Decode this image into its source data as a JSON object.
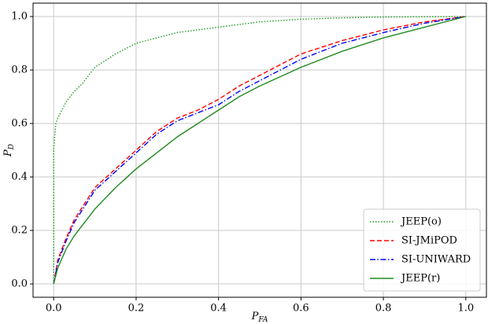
{
  "chart_data": {
    "type": "line",
    "xlabel": "P_FA",
    "ylabel": "P_D",
    "xlim": [
      -0.05,
      1.05
    ],
    "ylim": [
      -0.05,
      1.05
    ],
    "xticks": [
      {
        "value": 0,
        "label": "0.0"
      },
      0.2,
      0.4,
      0.6,
      0.8,
      {
        "value": 1,
        "label": "1.0"
      }
    ],
    "yticks": [
      {
        "value": 0,
        "label": "0.0"
      },
      0.2,
      0.4,
      0.6,
      0.8,
      {
        "value": 1,
        "label": "1.0"
      }
    ],
    "grid": true,
    "legend": "lower right",
    "series": [
      {
        "name": "JEEP(o)",
        "color": "#1f9a1f",
        "style": "dotted",
        "x": [
          0,
          0,
          0.005,
          0.01,
          0.02,
          0.03,
          0.05,
          0.07,
          0.1,
          0.15,
          0.2,
          0.25,
          0.3,
          0.4,
          0.5,
          0.6,
          0.7,
          0.8,
          0.9,
          1
        ],
        "values": [
          0,
          0.5,
          0.6,
          0.62,
          0.65,
          0.68,
          0.72,
          0.75,
          0.81,
          0.86,
          0.9,
          0.92,
          0.94,
          0.96,
          0.98,
          0.99,
          0.995,
          0.998,
          0.999,
          1
        ]
      },
      {
        "name": "SI-JMiPOD",
        "color": "#ff0000",
        "style": "dashed",
        "x": [
          0,
          0.01,
          0.03,
          0.05,
          0.1,
          0.15,
          0.2,
          0.25,
          0.3,
          0.35,
          0.4,
          0.45,
          0.5,
          0.6,
          0.7,
          0.8,
          0.9,
          1
        ],
        "values": [
          0,
          0.09,
          0.17,
          0.24,
          0.36,
          0.43,
          0.5,
          0.57,
          0.62,
          0.65,
          0.69,
          0.74,
          0.78,
          0.86,
          0.91,
          0.95,
          0.98,
          1
        ]
      },
      {
        "name": "SI-UNIWARD",
        "color": "#0000ff",
        "style": "dashdot",
        "x": [
          0,
          0.01,
          0.03,
          0.05,
          0.1,
          0.15,
          0.2,
          0.25,
          0.3,
          0.35,
          0.4,
          0.45,
          0.5,
          0.6,
          0.7,
          0.8,
          0.9,
          1
        ],
        "values": [
          0,
          0.08,
          0.16,
          0.23,
          0.35,
          0.42,
          0.49,
          0.56,
          0.61,
          0.64,
          0.67,
          0.72,
          0.76,
          0.84,
          0.9,
          0.94,
          0.975,
          1
        ]
      },
      {
        "name": "JEEP(r)",
        "color": "#228b22",
        "style": "solid",
        "x": [
          0,
          0.01,
          0.03,
          0.05,
          0.1,
          0.15,
          0.2,
          0.25,
          0.3,
          0.35,
          0.4,
          0.45,
          0.5,
          0.6,
          0.7,
          0.8,
          0.9,
          1
        ],
        "values": [
          0,
          0.06,
          0.13,
          0.18,
          0.28,
          0.36,
          0.43,
          0.49,
          0.55,
          0.6,
          0.65,
          0.7,
          0.74,
          0.81,
          0.87,
          0.92,
          0.96,
          1
        ]
      }
    ]
  }
}
